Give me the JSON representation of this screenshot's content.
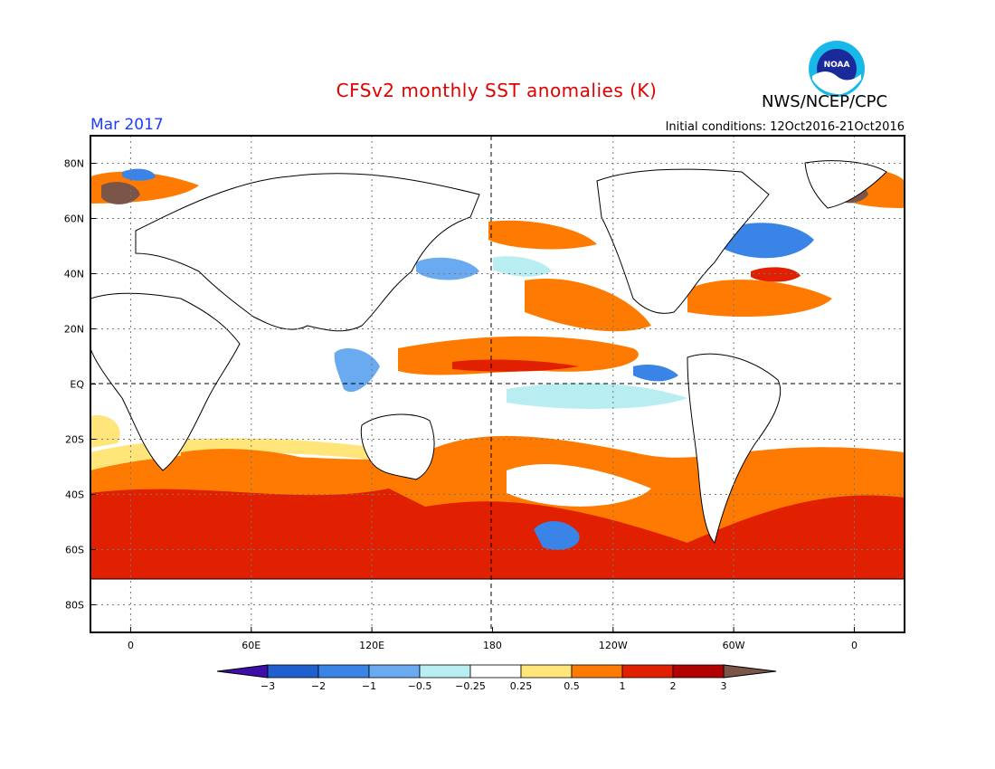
{
  "header": {
    "title": "CFSv2 monthly SST anomalies (K)",
    "organization": "NWS/NCEP/CPC",
    "forecast_month": "Mar 2017",
    "initial_conditions": "Initial conditions: 12Oct2016-21Oct2016",
    "logo_text": "NOAA"
  },
  "map": {
    "lat_labels": [
      "80N",
      "60N",
      "40N",
      "20N",
      "EQ",
      "20S",
      "40S",
      "60S",
      "80S"
    ],
    "lon_labels": [
      "0",
      "60E",
      "120E",
      "180",
      "120W",
      "60W",
      "0"
    ],
    "lat_values": [
      80,
      60,
      40,
      20,
      0,
      -20,
      -40,
      -60,
      -80
    ],
    "lon_values": [
      0,
      60,
      120,
      180,
      240,
      300,
      360
    ],
    "lon_range": [
      -20,
      385
    ],
    "lat_range": [
      -90,
      90
    ]
  },
  "colorbar": {
    "labels": [
      "-3",
      "-2",
      "-1",
      "-0.5",
      "-0.25",
      "0.25",
      "0.5",
      "1",
      "2",
      "3"
    ],
    "colors": [
      "#3d0ea8",
      "#1f5fce",
      "#3a84e8",
      "#6aaaf0",
      "#b8eef2",
      "#ffffff",
      "#ffe57a",
      "#ff7a00",
      "#e02000",
      "#b00000",
      "#7a5548"
    ]
  }
}
